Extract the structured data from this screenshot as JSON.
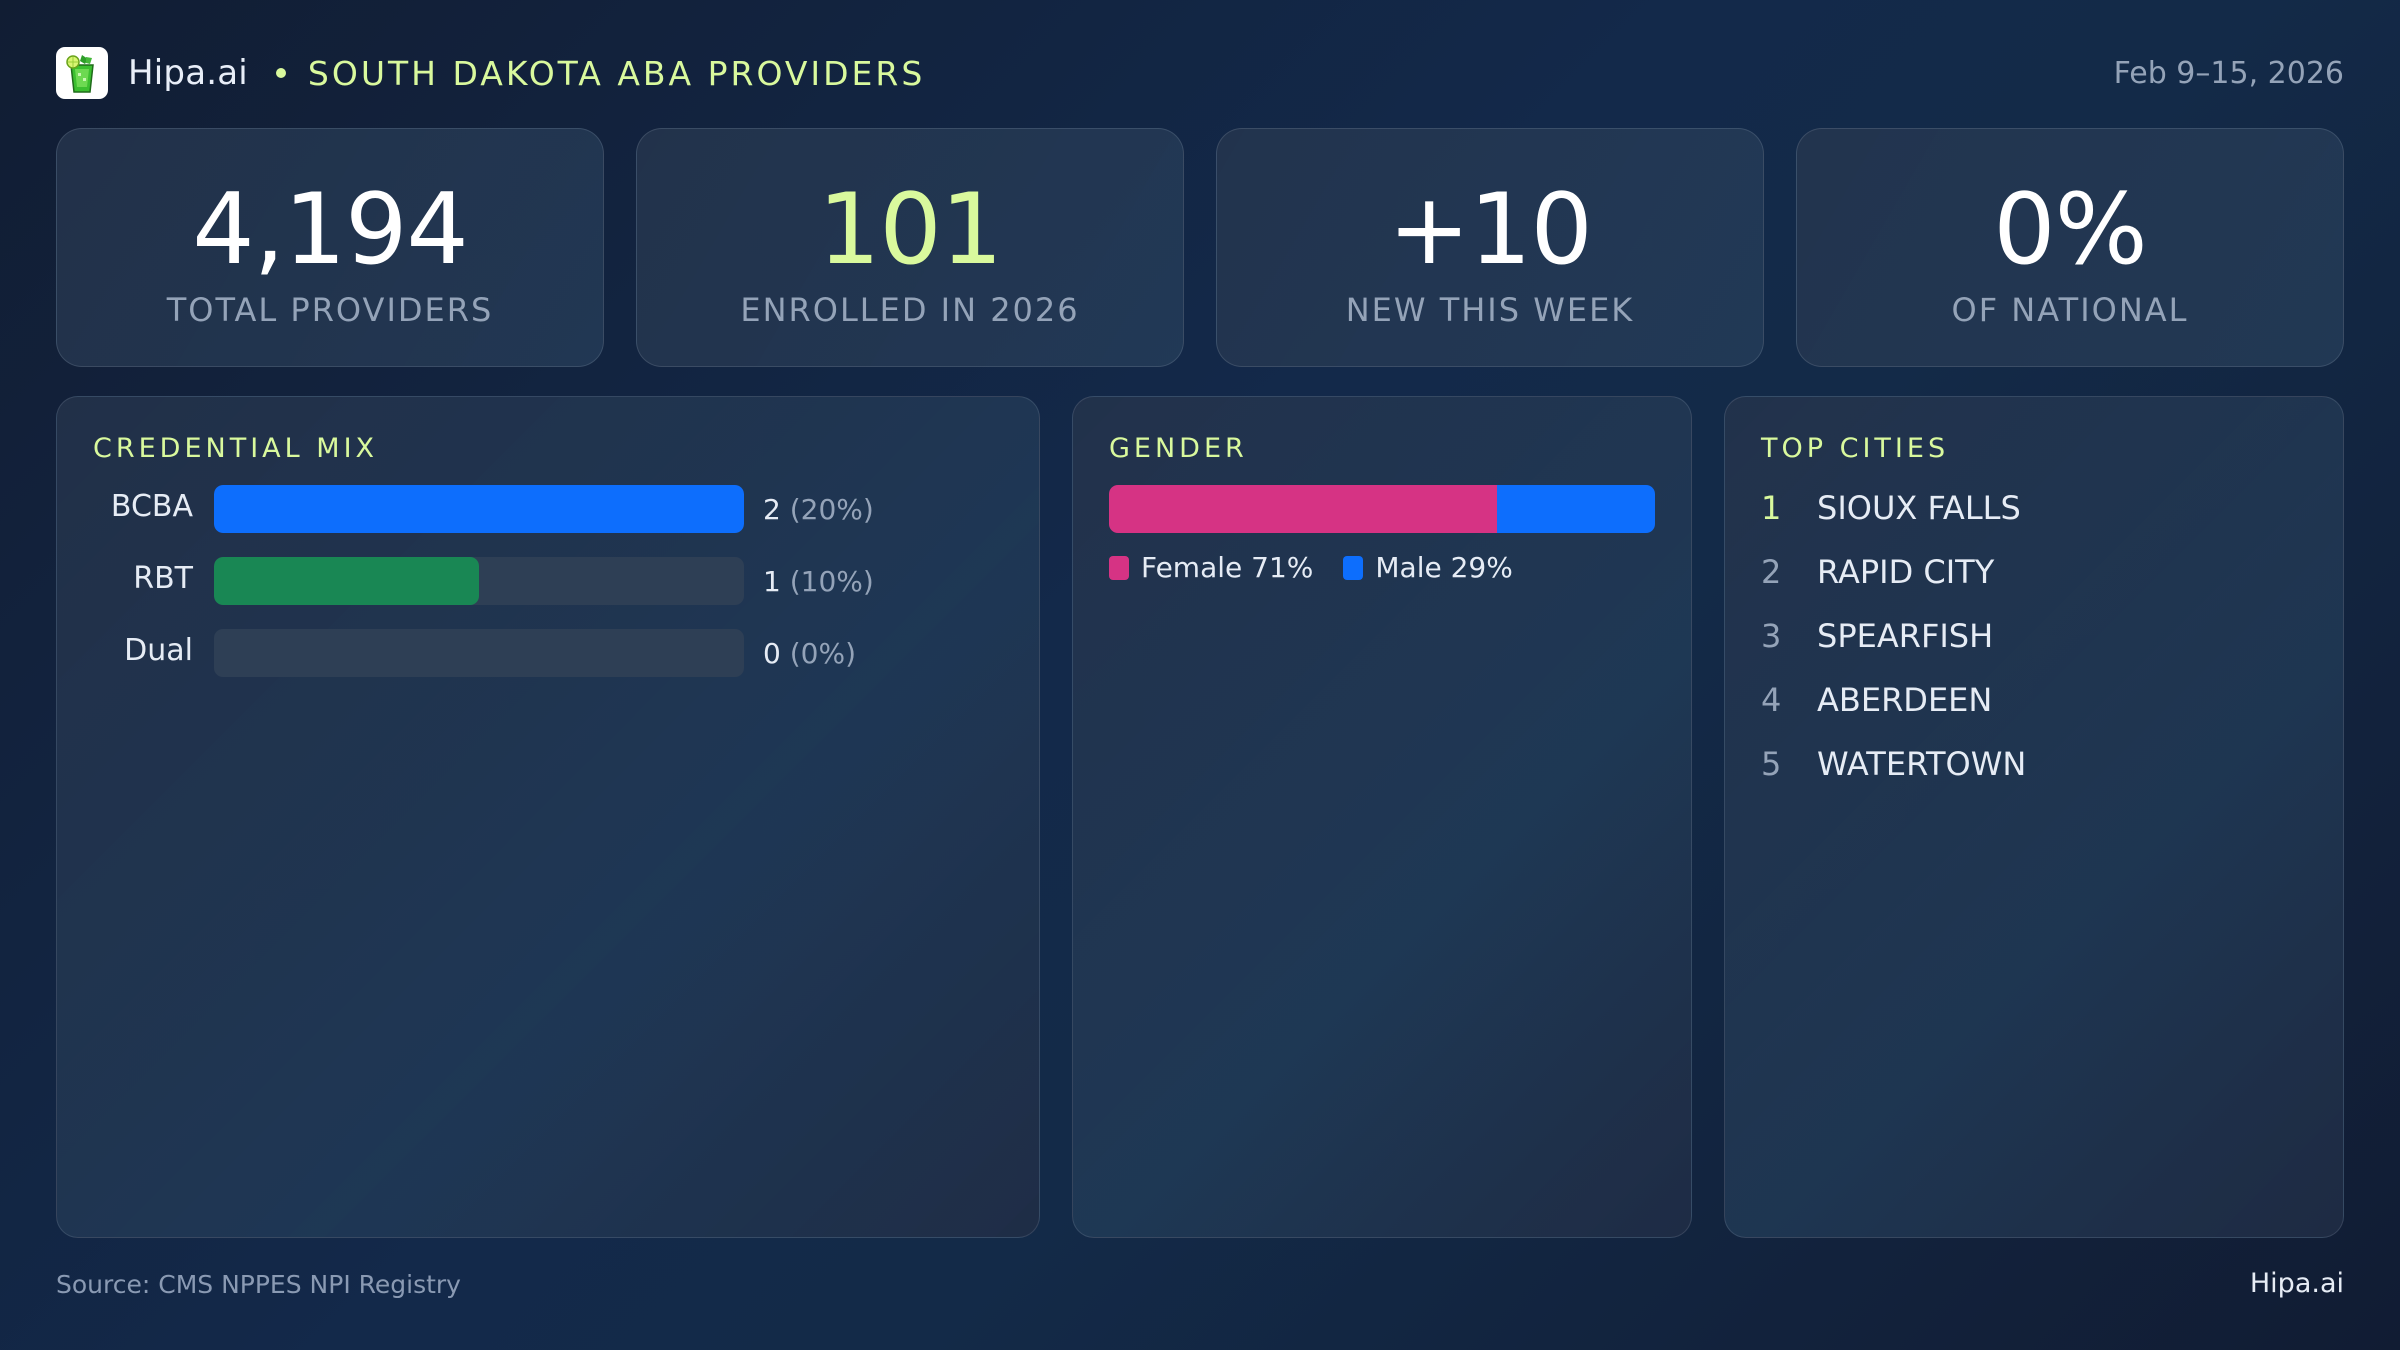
{
  "header": {
    "logo_icon": "mojito-glass-icon",
    "brand": "Hipa.ai",
    "separator": "•",
    "title": "SOUTH DAKOTA ABA PROVIDERS",
    "date_range": "Feb 9–15, 2026"
  },
  "stats": [
    {
      "value": "4,194",
      "label": "TOTAL PROVIDERS",
      "accent": false
    },
    {
      "value": "101",
      "label": "ENROLLED IN 2026",
      "accent": true
    },
    {
      "value": "+10",
      "label": "NEW THIS WEEK",
      "accent": false
    },
    {
      "value": "0%",
      "label": "OF NATIONAL",
      "accent": false
    }
  ],
  "credential_mix": {
    "title": "CREDENTIAL MIX",
    "rows": [
      {
        "label": "BCBA",
        "count": "2",
        "pct": "(20%)",
        "fill_percent": 100,
        "color": "#0d6efd"
      },
      {
        "label": "RBT",
        "count": "1",
        "pct": "(10%)",
        "fill_percent": 50,
        "color": "#198754"
      },
      {
        "label": "Dual",
        "count": "0",
        "pct": "(0%)",
        "fill_percent": 0,
        "color": "#2e3f55"
      }
    ]
  },
  "gender": {
    "title": "GENDER",
    "segments": [
      {
        "label": "Female 71%",
        "percent": 71,
        "color": "#d63384"
      },
      {
        "label": "Male 29%",
        "percent": 29,
        "color": "#0d6efd"
      }
    ]
  },
  "top_cities": {
    "title": "TOP CITIES",
    "items": [
      {
        "rank": "1",
        "name": "SIOUX FALLS"
      },
      {
        "rank": "2",
        "name": "RAPID CITY"
      },
      {
        "rank": "3",
        "name": "SPEARFISH"
      },
      {
        "rank": "4",
        "name": "ABERDEEN"
      },
      {
        "rank": "5",
        "name": "WATERTOWN"
      }
    ]
  },
  "footer": {
    "source": "Source: CMS NPPES NPI Registry",
    "brand": "Hipa.ai"
  },
  "colors": {
    "accent": "#d9f99d",
    "bcba": "#0d6efd",
    "rbt": "#198754",
    "female": "#d63384",
    "male": "#0d6efd"
  }
}
